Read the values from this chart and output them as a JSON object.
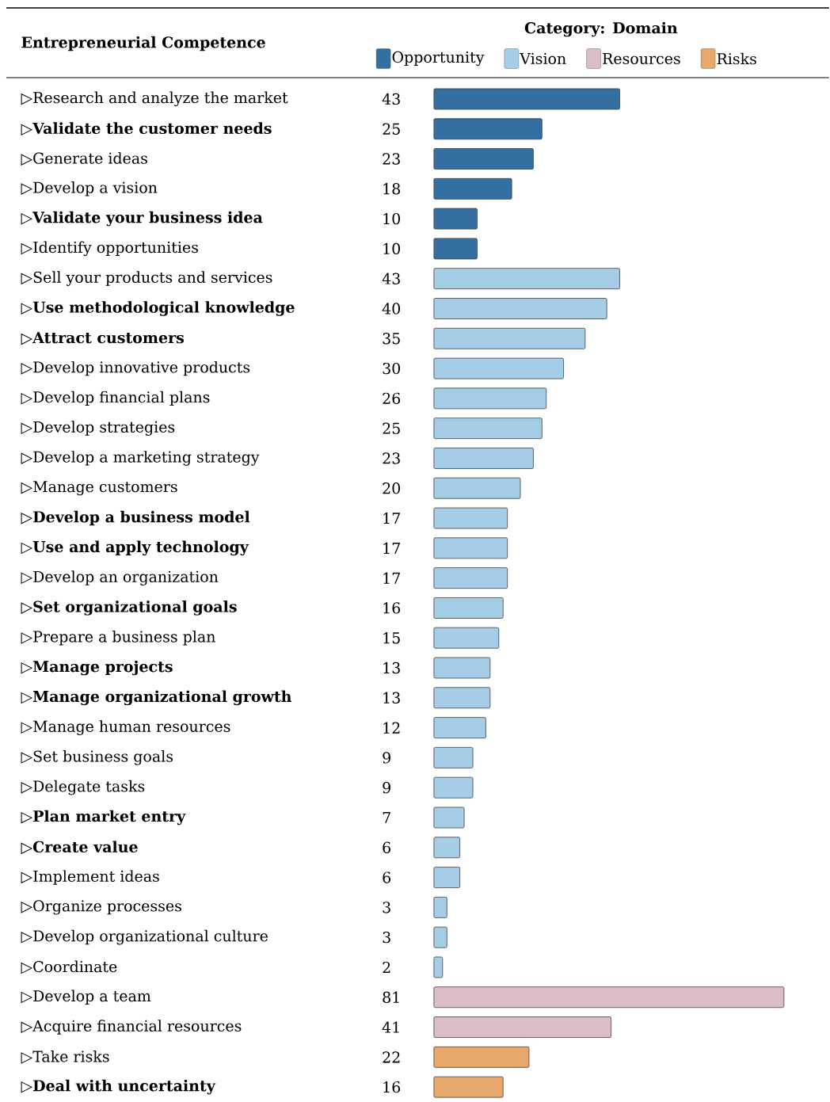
{
  "chart_data": {
    "type": "bar",
    "orientation": "horizontal",
    "annotations": [
      "Entrepreneurial Competence"
    ],
    "legend_title": "Category: Domain",
    "legend": "top",
    "data_labels": true,
    "categories": [
      "▷Research and analyze the market",
      "▷**Validate the customer needs**",
      "▷Generate ideas",
      "▷Develop a vision",
      "▷**Validate your business idea**",
      "▷Identify opportunities",
      "▷Sell your products and services",
      "▷**Use methodological knowledge**",
      "▷**Attract customers**",
      "▷Develop innovative products",
      "▷Develop financial plans",
      "▷Develop strategies",
      "▷Develop a marketing strategy",
      "▷Manage customers",
      "▷**Develop a business model**",
      "▷**Use and apply technology**",
      "▷Develop an organization",
      "▷**Set organizational goals**",
      "▷Prepare a business plan",
      "▷**Manage projects**",
      "▷**Manage organizational growth**",
      "▷Manage human resources",
      "▷Set business goals",
      "▷Delegate tasks",
      "▷**Plan market entry**",
      "▷**Create value**",
      "▷Implement ideas",
      "▷Organize processes",
      "▷Develop organizational culture",
      "▷Coordinate",
      "▷Develop a team",
      "▷Acquire financial resources",
      "▷Take risks",
      "▷**Deal with uncertainty**"
    ],
    "series": [
      {
        "name": "Opportunity",
        "color": "#336fa0",
        "values": [
          43,
          25,
          23,
          18,
          10,
          10,
          null,
          null,
          null,
          null,
          null,
          null,
          null,
          null,
          null,
          null,
          null,
          null,
          null,
          null,
          null,
          null,
          null,
          null,
          null,
          null,
          null,
          null,
          null,
          null,
          null,
          null,
          null,
          null
        ]
      },
      {
        "name": "Vision",
        "color": "#a6cde8",
        "values": [
          null,
          null,
          null,
          null,
          null,
          null,
          43,
          40,
          35,
          30,
          26,
          25,
          23,
          20,
          17,
          17,
          17,
          16,
          15,
          13,
          13,
          12,
          9,
          9,
          7,
          6,
          6,
          3,
          3,
          2,
          null,
          null,
          null,
          null
        ]
      },
      {
        "name": "Resources",
        "color": "#dbbec6",
        "values": [
          null,
          null,
          null,
          null,
          null,
          null,
          null,
          null,
          null,
          null,
          null,
          null,
          null,
          null,
          null,
          null,
          null,
          null,
          null,
          null,
          null,
          null,
          null,
          null,
          null,
          null,
          null,
          null,
          null,
          null,
          81,
          41,
          null,
          null
        ]
      },
      {
        "name": "Risks",
        "color": "#e8a76b",
        "values": [
          null,
          null,
          null,
          null,
          null,
          null,
          null,
          null,
          null,
          null,
          null,
          null,
          null,
          null,
          null,
          null,
          null,
          null,
          null,
          null,
          null,
          null,
          null,
          null,
          null,
          null,
          null,
          null,
          null,
          null,
          null,
          null,
          22,
          16
        ]
      }
    ]
  }
}
